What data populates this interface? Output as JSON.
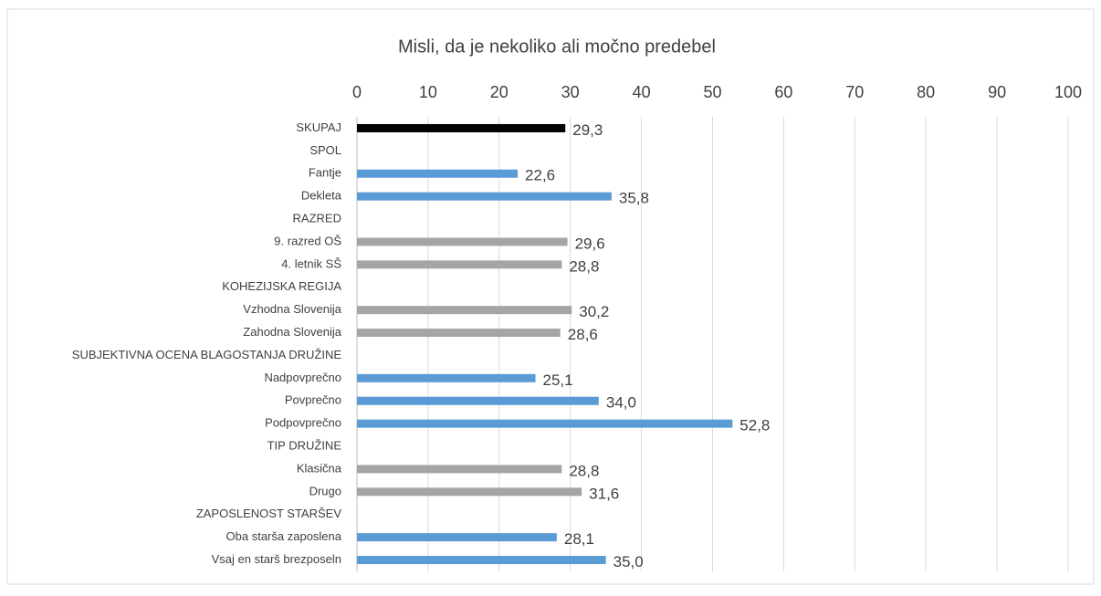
{
  "chart_data": {
    "type": "hbar",
    "title": "Misli, da je nekoliko ali močno predebel",
    "categories": [
      "SKUPAJ",
      "SPOL",
      "Fantje",
      "Dekleta",
      "RAZRED",
      "9. razred OŠ",
      "4. letnik SŠ",
      "KOHEZIJSKA REGIJA",
      "Vzhodna Slovenija",
      "Zahodna Slovenija",
      "SUBJEKTIVNA OCENA BLAGOSTANJA DRUŽINE",
      "Nadpovprečno",
      "Povprečno",
      "Podpovprečno",
      "TIP DRUŽINE",
      "Klasična",
      "Drugo",
      "ZAPOSLENOST STARŠEV",
      "Oba starša zaposlena",
      "Vsaj en starš brezposeln"
    ],
    "values": [
      29.3,
      null,
      22.6,
      35.8,
      null,
      29.6,
      28.8,
      null,
      30.2,
      28.6,
      null,
      25.1,
      34.0,
      52.8,
      null,
      28.8,
      31.6,
      null,
      28.1,
      35.0
    ],
    "value_labels": [
      "29,3",
      null,
      "22,6",
      "35,8",
      null,
      "29,6",
      "28,8",
      null,
      "30,2",
      "28,6",
      null,
      "25,1",
      "34,0",
      "52,8",
      null,
      "28,8",
      "31,6",
      null,
      "28,1",
      "35,0"
    ],
    "colors": [
      "#000000",
      null,
      "#5b9bd5",
      "#5b9bd5",
      null,
      "#a5a5a5",
      "#a5a5a5",
      null,
      "#a5a5a5",
      "#a5a5a5",
      null,
      "#5b9bd5",
      "#5b9bd5",
      "#5b9bd5",
      null,
      "#a5a5a5",
      "#a5a5a5",
      null,
      "#5b9bd5",
      "#5b9bd5"
    ],
    "xlim": [
      0,
      100
    ],
    "xticks": [
      0,
      10,
      20,
      30,
      40,
      50,
      60,
      70,
      80,
      90,
      100
    ],
    "grid": true
  }
}
